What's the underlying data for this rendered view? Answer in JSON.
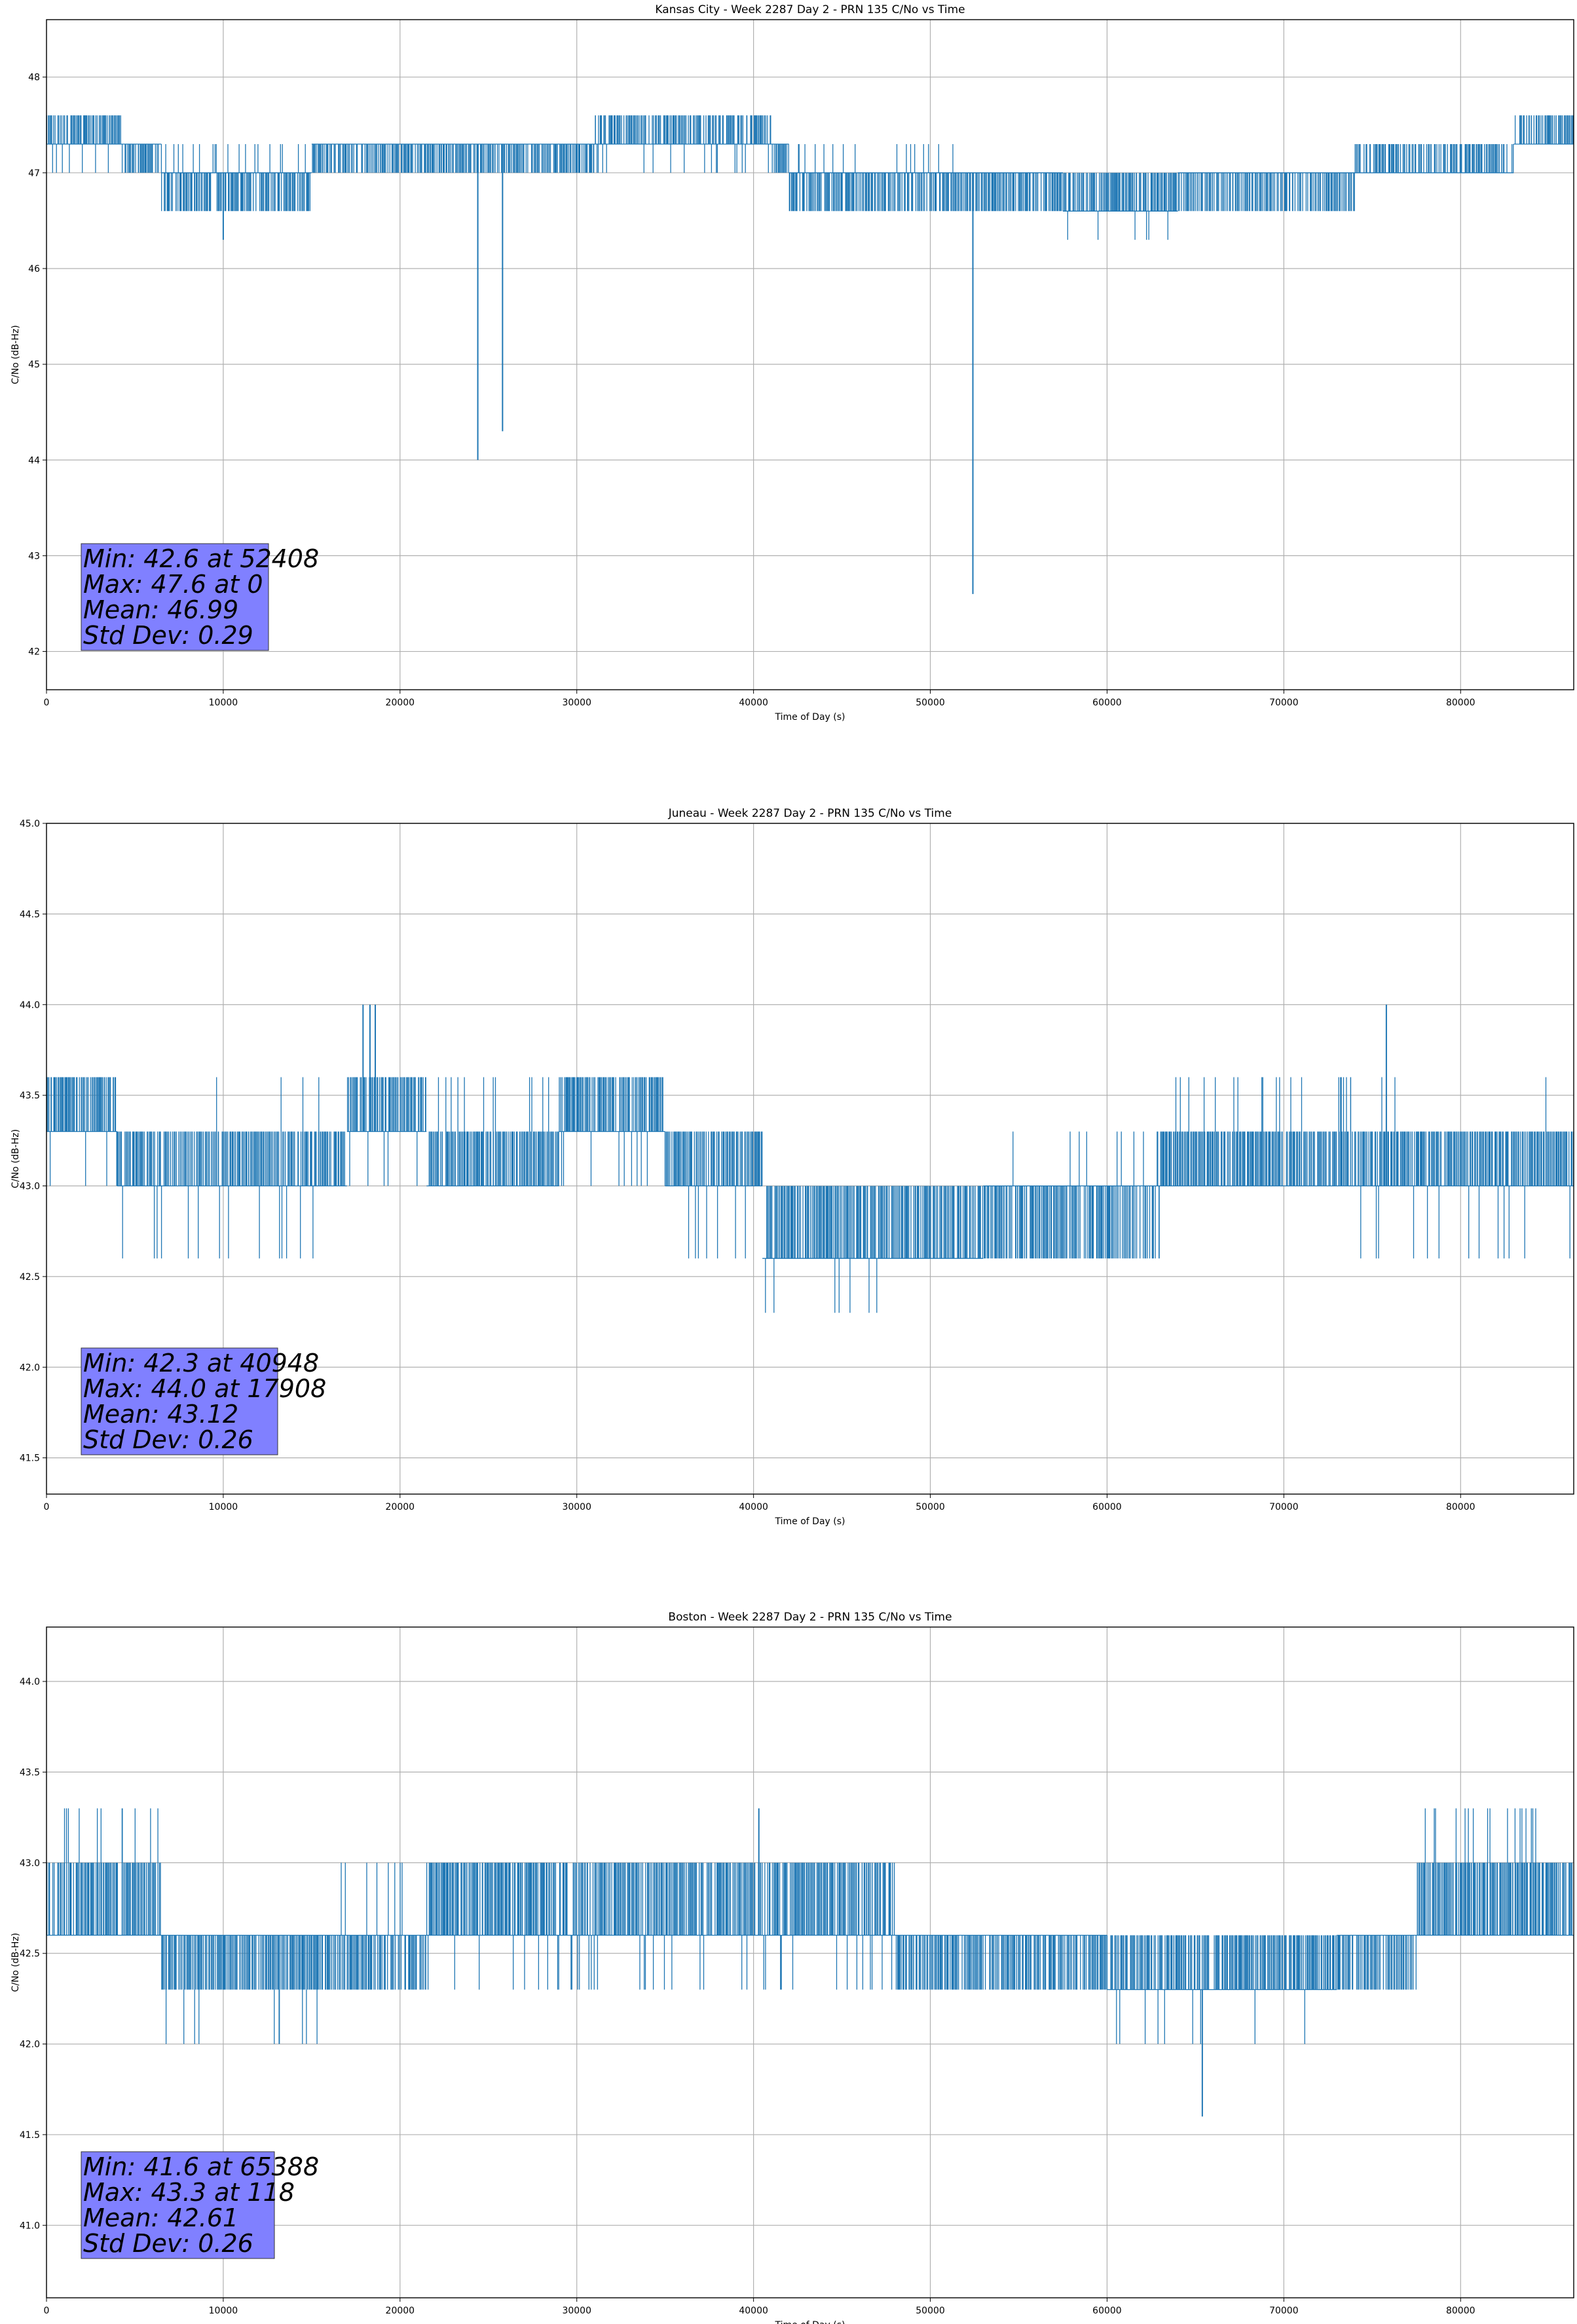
{
  "chart_data": [
    {
      "type": "line",
      "title": "Kansas City - Week 2287 Day 2 - PRN 135 C/No vs Time",
      "xlabel": "Time of Day (s)",
      "ylabel": "C/No (dB-Hz)",
      "xlim": [
        0,
        86400
      ],
      "ylim": [
        41.6,
        48.6
      ],
      "xticks": [
        0,
        10000,
        20000,
        30000,
        40000,
        50000,
        60000,
        70000,
        80000
      ],
      "yticks": [
        42,
        43,
        44,
        45,
        46,
        47,
        48
      ],
      "ytick_labels": [
        "42",
        "43",
        "44",
        "45",
        "46",
        "47",
        "48"
      ],
      "grid": true,
      "series_color": "#1f77b4",
      "levels": [
        46.3,
        46.6,
        47.0,
        47.3,
        47.6
      ],
      "segments": [
        {
          "x0": 0,
          "x1": 4200,
          "base": 47.3,
          "alts": [
            47.6,
            47.0
          ]
        },
        {
          "x0": 4200,
          "x1": 6500,
          "base": 47.3,
          "alts": [
            47.0
          ]
        },
        {
          "x0": 6500,
          "x1": 15000,
          "base": 47.0,
          "alts": [
            46.6,
            47.3
          ]
        },
        {
          "x0": 15000,
          "x1": 31000,
          "base": 47.3,
          "alts": [
            47.0
          ]
        },
        {
          "x0": 31000,
          "x1": 41000,
          "base": 47.3,
          "alts": [
            47.6,
            47.0
          ]
        },
        {
          "x0": 41000,
          "x1": 42000,
          "base": 47.3,
          "alts": [
            47.0
          ]
        },
        {
          "x0": 42000,
          "x1": 52000,
          "base": 47.0,
          "alts": [
            46.6,
            47.3
          ]
        },
        {
          "x0": 52000,
          "x1": 57500,
          "base": 47.0,
          "alts": [
            46.6
          ]
        },
        {
          "x0": 57500,
          "x1": 64000,
          "base": 46.6,
          "alts": [
            47.0,
            46.3
          ]
        },
        {
          "x0": 64000,
          "x1": 74000,
          "base": 47.0,
          "alts": [
            46.6
          ]
        },
        {
          "x0": 74000,
          "x1": 83000,
          "base": 47.0,
          "alts": [
            47.3
          ]
        },
        {
          "x0": 83000,
          "x1": 86400,
          "base": 47.3,
          "alts": [
            47.6
          ]
        }
      ],
      "spikes": [
        {
          "x": 10000,
          "y": 46.3
        },
        {
          "x": 24400,
          "y": 44.0
        },
        {
          "x": 25800,
          "y": 44.3
        },
        {
          "x": 52408,
          "y": 42.6
        }
      ],
      "stats": {
        "min": "Min: 42.6 at 52408",
        "max": "Max: 47.6 at 0",
        "mean": "Mean: 46.99",
        "std": "Std Dev: 0.29"
      }
    },
    {
      "type": "line",
      "title": "Juneau - Week 2287 Day 2 - PRN 135 C/No vs Time",
      "xlabel": "Time of Day (s)",
      "ylabel": "C/No (dB-Hz)",
      "xlim": [
        0,
        86400
      ],
      "ylim": [
        41.3,
        45.0
      ],
      "xticks": [
        0,
        10000,
        20000,
        30000,
        40000,
        50000,
        60000,
        70000,
        80000
      ],
      "yticks": [
        41.5,
        42.0,
        42.5,
        43.0,
        43.5,
        44.0,
        44.5,
        45.0
      ],
      "ytick_labels": [
        "41.5",
        "42.0",
        "42.5",
        "43.0",
        "43.5",
        "44.0",
        "44.5",
        "45.0"
      ],
      "grid": true,
      "series_color": "#1f77b4",
      "levels": [
        42.3,
        42.6,
        43.0,
        43.3,
        43.6,
        44.0
      ],
      "segments": [
        {
          "x0": 0,
          "x1": 4000,
          "base": 43.3,
          "alts": [
            43.6,
            43.0
          ]
        },
        {
          "x0": 4000,
          "x1": 17000,
          "base": 43.0,
          "alts": [
            43.3,
            42.6,
            43.6
          ]
        },
        {
          "x0": 17000,
          "x1": 21500,
          "base": 43.3,
          "alts": [
            43.6,
            43.0
          ]
        },
        {
          "x0": 21500,
          "x1": 29000,
          "base": 43.0,
          "alts": [
            43.3,
            43.6
          ]
        },
        {
          "x0": 29000,
          "x1": 35000,
          "base": 43.3,
          "alts": [
            43.6,
            43.0
          ]
        },
        {
          "x0": 35000,
          "x1": 40500,
          "base": 43.0,
          "alts": [
            43.3,
            42.6
          ]
        },
        {
          "x0": 40500,
          "x1": 47500,
          "base": 42.6,
          "alts": [
            43.0,
            42.3
          ]
        },
        {
          "x0": 47500,
          "x1": 53000,
          "base": 42.6,
          "alts": [
            43.0
          ]
        },
        {
          "x0": 53000,
          "x1": 63000,
          "base": 43.0,
          "alts": [
            42.6,
            43.3
          ]
        },
        {
          "x0": 63000,
          "x1": 74000,
          "base": 43.0,
          "alts": [
            43.3,
            43.6
          ]
        },
        {
          "x0": 74000,
          "x1": 86400,
          "base": 43.0,
          "alts": [
            43.3,
            42.6,
            43.6
          ]
        }
      ],
      "spikes": [
        {
          "x": 17908,
          "y": 44.0
        },
        {
          "x": 18300,
          "y": 44.0
        },
        {
          "x": 18600,
          "y": 44.0
        },
        {
          "x": 75800,
          "y": 44.0
        }
      ],
      "stats": {
        "min": "Min: 42.3 at 40948",
        "max": "Max: 44.0 at 17908",
        "mean": "Mean: 43.12",
        "std": "Std Dev: 0.26"
      }
    },
    {
      "type": "line",
      "title": "Boston - Week 2287 Day 2 - PRN 135 C/No vs Time",
      "xlabel": "Time of Day (s)",
      "ylabel": "C/No (dB-Hz)",
      "xlim": [
        0,
        86400
      ],
      "ylim": [
        40.6,
        44.3
      ],
      "xticks": [
        0,
        10000,
        20000,
        30000,
        40000,
        50000,
        60000,
        70000,
        80000
      ],
      "yticks": [
        41.0,
        41.5,
        42.0,
        42.5,
        43.0,
        43.5,
        44.0
      ],
      "ytick_labels": [
        "41.0",
        "41.5",
        "42.0",
        "42.5",
        "43.0",
        "43.5",
        "44.0"
      ],
      "grid": true,
      "series_color": "#1f77b4",
      "levels": [
        41.6,
        42.0,
        42.3,
        42.6,
        43.0,
        43.3
      ],
      "segments": [
        {
          "x0": 0,
          "x1": 6500,
          "base": 42.6,
          "alts": [
            43.0,
            43.3
          ]
        },
        {
          "x0": 6500,
          "x1": 15500,
          "base": 42.6,
          "alts": [
            42.3,
            42.0
          ]
        },
        {
          "x0": 15500,
          "x1": 21500,
          "base": 42.6,
          "alts": [
            42.3,
            43.0
          ]
        },
        {
          "x0": 21500,
          "x1": 38000,
          "base": 42.6,
          "alts": [
            43.0,
            42.3
          ]
        },
        {
          "x0": 38000,
          "x1": 48000,
          "base": 42.6,
          "alts": [
            43.0,
            42.3
          ]
        },
        {
          "x0": 48000,
          "x1": 60000,
          "base": 42.6,
          "alts": [
            42.3
          ]
        },
        {
          "x0": 60000,
          "x1": 73000,
          "base": 42.3,
          "alts": [
            42.6,
            42.0
          ]
        },
        {
          "x0": 73000,
          "x1": 77500,
          "base": 42.6,
          "alts": [
            42.3
          ]
        },
        {
          "x0": 77500,
          "x1": 86400,
          "base": 42.6,
          "alts": [
            43.0,
            43.3
          ]
        }
      ],
      "spikes": [
        {
          "x": 65388,
          "y": 41.6
        },
        {
          "x": 40300,
          "y": 43.3
        }
      ],
      "stats": {
        "min": "Min: 41.6 at 65388",
        "max": "Max: 43.3 at 118",
        "mean": "Mean: 42.61",
        "std": "Std Dev: 0.26"
      }
    }
  ]
}
